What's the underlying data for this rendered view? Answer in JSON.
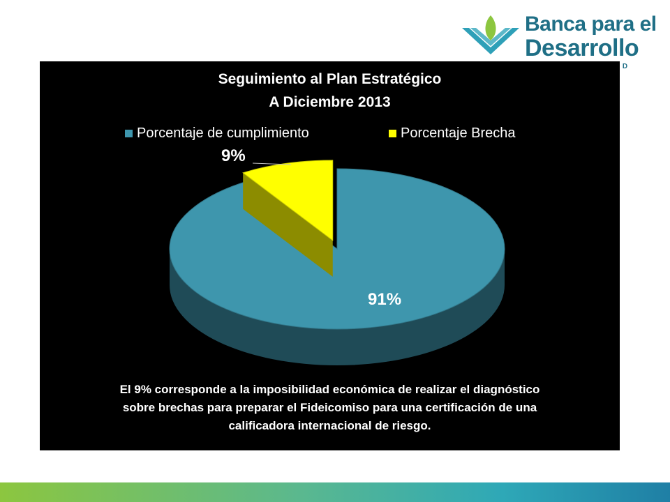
{
  "logo": {
    "line1": "Banca para el",
    "line2": "Desarrollo",
    "sub": "SBD",
    "icon": "leaf-chevron-logo",
    "colors": {
      "text": "#1f6f86",
      "chevron": "#2ea0b8",
      "leaf": "#8cc63f"
    }
  },
  "chart_data": {
    "type": "pie",
    "title": "Seguimiento al Plan Estratégico",
    "subtitle": "A Diciembre 2013",
    "legend_position": "top",
    "slices": [
      {
        "label": "Porcentaje de cumplimiento",
        "value": 91,
        "display": "91%",
        "color": "#3e96ad"
      },
      {
        "label": "Porcentaje Brecha",
        "value": 9,
        "display": "9%",
        "color": "#ffff00"
      }
    ],
    "style": "3d-exploded"
  },
  "note": "El 9% corresponde a la imposibilidad económica de realizar el diagnóstico sobre brechas para preparar el Fideicomiso para una certificación de una calificadora internacional de riesgo.",
  "colors": {
    "panel_bg": "#000000",
    "text": "#ffffff"
  }
}
